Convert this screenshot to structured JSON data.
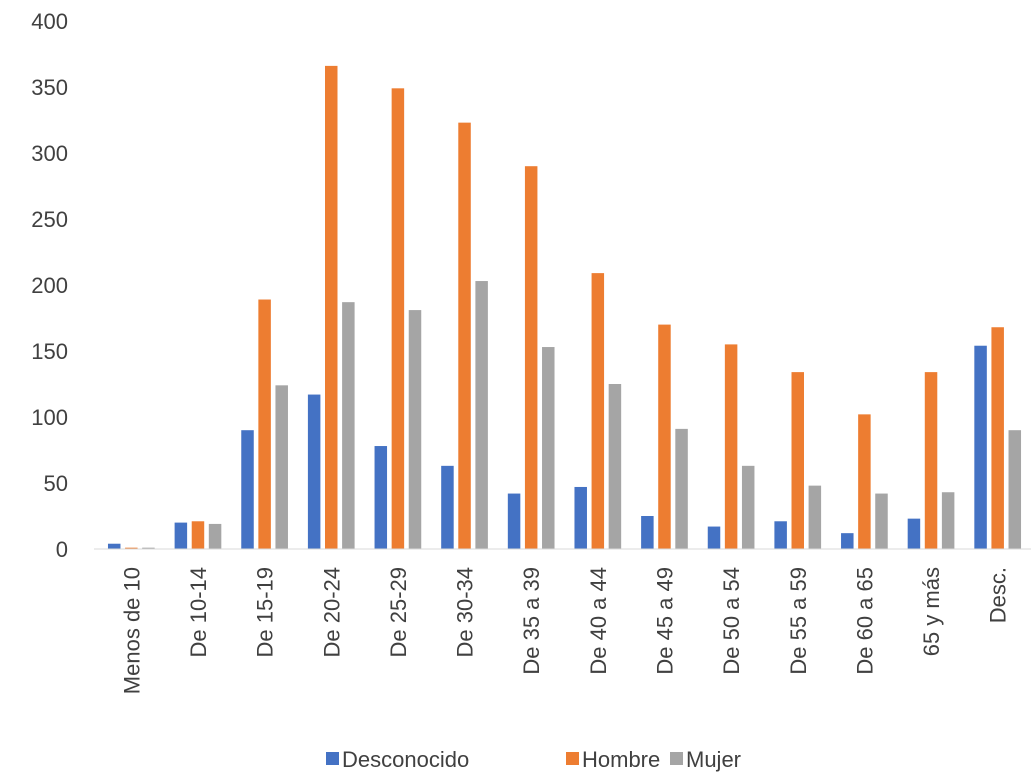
{
  "chart_data": {
    "type": "bar",
    "categories": [
      "Menos de 10",
      "De 10-14",
      "De 15-19",
      "De 20-24",
      "De 25-29",
      "De 30-34",
      "De 35 a 39",
      "De 40 a 44",
      "De 45 a 49",
      "De 50 a 54",
      "De 55 a 59",
      "De 60 a 65",
      "65 y más",
      "Desc."
    ],
    "series": [
      {
        "name": "Desconocido",
        "color": "#4472C4",
        "values": [
          4,
          20,
          90,
          117,
          78,
          63,
          42,
          47,
          25,
          17,
          21,
          12,
          23,
          154
        ]
      },
      {
        "name": "Hombre",
        "color": "#ED7D31",
        "values": [
          1,
          21,
          189,
          366,
          349,
          323,
          290,
          209,
          170,
          155,
          134,
          102,
          134,
          168
        ]
      },
      {
        "name": "Mujer",
        "color": "#A5A5A5",
        "values": [
          1,
          19,
          124,
          187,
          181,
          203,
          153,
          125,
          91,
          63,
          48,
          42,
          43,
          90
        ]
      }
    ],
    "ylim": [
      0,
      400
    ],
    "yticks": [
      0,
      50,
      100,
      150,
      200,
      250,
      300,
      350,
      400
    ],
    "grid": false,
    "legend_position": "bottom",
    "title": "",
    "xlabel": "",
    "ylabel": ""
  }
}
